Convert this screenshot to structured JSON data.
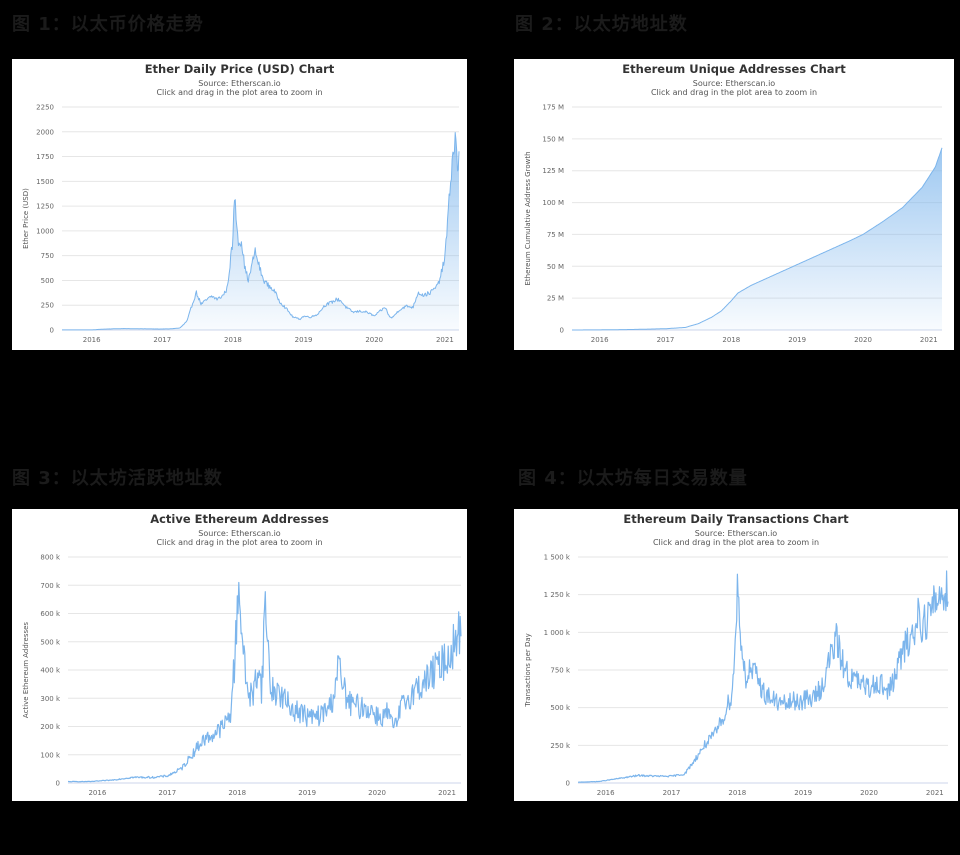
{
  "captions": [
    "图 1：以太币价格走势",
    "图 2：以太坊地址数",
    "图 3：以太坊活跃地址数",
    "图 4：以太坊每日交易数量"
  ],
  "colors": {
    "line": "#7cb5ec",
    "fill_top": "#7cb5ec",
    "grid": "#e6e6e6",
    "background": "#000000"
  },
  "chart_data": [
    {
      "type": "area",
      "title": "Ether Daily Price (USD) Chart",
      "subtitle_source": "Source: Etherscan.io",
      "subtitle_hint": "Click and drag in the plot area to zoom in",
      "xlabel": "",
      "ylabel": "Ether Price (USD)",
      "xlim": [
        2015.58,
        2021.2
      ],
      "ylim": [
        0,
        2250
      ],
      "yticks": [
        0,
        250,
        500,
        750,
        1000,
        1250,
        1500,
        1750,
        2000,
        2250
      ],
      "ytick_labels": [
        "0",
        "250",
        "500",
        "750",
        "1000",
        "1250",
        "1500",
        "1750",
        "2000",
        "2250"
      ],
      "xticks": [
        2016,
        2017,
        2018,
        2019,
        2020,
        2021
      ],
      "xtick_labels": [
        "2016",
        "2017",
        "2018",
        "2019",
        "2020",
        "2021"
      ],
      "x": [
        2015.58,
        2015.8,
        2016.0,
        2016.2,
        2016.45,
        2016.7,
        2016.95,
        2017.1,
        2017.25,
        2017.35,
        2017.42,
        2017.48,
        2017.55,
        2017.62,
        2017.7,
        2017.78,
        2017.86,
        2017.92,
        2017.97,
        2018.0,
        2018.02,
        2018.05,
        2018.08,
        2018.12,
        2018.17,
        2018.22,
        2018.27,
        2018.31,
        2018.35,
        2018.42,
        2018.5,
        2018.58,
        2018.66,
        2018.75,
        2018.85,
        2018.95,
        2019.0,
        2019.1,
        2019.2,
        2019.3,
        2019.4,
        2019.47,
        2019.52,
        2019.6,
        2019.7,
        2019.8,
        2019.9,
        2020.0,
        2020.1,
        2020.16,
        2020.2,
        2020.25,
        2020.35,
        2020.45,
        2020.55,
        2020.62,
        2020.7,
        2020.8,
        2020.9,
        2020.96,
        2021.0,
        2021.03,
        2021.06,
        2021.09,
        2021.12,
        2021.15,
        2021.18,
        2021.2
      ],
      "values": [
        1,
        1,
        1,
        10,
        14,
        12,
        10,
        11,
        20,
        90,
        250,
        380,
        260,
        300,
        340,
        310,
        350,
        420,
        740,
        900,
        1380,
        1100,
        880,
        900,
        620,
        500,
        660,
        800,
        700,
        520,
        450,
        400,
        290,
        220,
        130,
        110,
        140,
        130,
        160,
        250,
        280,
        310,
        300,
        230,
        180,
        190,
        180,
        140,
        200,
        230,
        150,
        120,
        200,
        240,
        230,
        380,
        350,
        380,
        450,
        600,
        740,
        1000,
        1300,
        1600,
        1800,
        1950,
        1600,
        1750
      ]
    },
    {
      "type": "area",
      "title": "Ethereum Unique Addresses Chart",
      "subtitle_source": "Source: Etherscan.io",
      "subtitle_hint": "Click and drag in the plot area to zoom in",
      "xlabel": "",
      "ylabel": "Ethereum Cumulative Address Growth",
      "xlim": [
        2015.58,
        2021.2
      ],
      "ylim": [
        0,
        175
      ],
      "yticks": [
        0,
        25,
        50,
        75,
        100,
        125,
        150,
        175
      ],
      "ytick_labels": [
        "0",
        "25 M",
        "50 M",
        "75 M",
        "100 M",
        "125 M",
        "150 M",
        "175 M"
      ],
      "xticks": [
        2016,
        2017,
        2018,
        2019,
        2020,
        2021
      ],
      "xtick_labels": [
        "2016",
        "2017",
        "2018",
        "2019",
        "2020",
        "2021"
      ],
      "x": [
        2015.58,
        2016.0,
        2016.5,
        2017.0,
        2017.3,
        2017.5,
        2017.7,
        2017.85,
        2018.0,
        2018.1,
        2018.3,
        2018.6,
        2018.9,
        2019.2,
        2019.5,
        2019.8,
        2020.0,
        2020.3,
        2020.6,
        2020.9,
        2021.1,
        2021.2
      ],
      "values": [
        0,
        0.1,
        0.4,
        1,
        2,
        5,
        10,
        15,
        23,
        29,
        35,
        42,
        49,
        56,
        63,
        70,
        75,
        85,
        96,
        112,
        128,
        143
      ]
    },
    {
      "type": "line",
      "title": "Active Ethereum Addresses",
      "subtitle_source": "Source: Etherscan.io",
      "subtitle_hint": "Click and drag in the plot area to zoom in",
      "xlabel": "",
      "ylabel": "Active Ethereum Addresses",
      "xlim": [
        2015.58,
        2021.2
      ],
      "ylim": [
        0,
        800
      ],
      "yticks": [
        0,
        100,
        200,
        300,
        400,
        500,
        600,
        700,
        800
      ],
      "ytick_labels": [
        "0",
        "100 k",
        "200 k",
        "300 k",
        "400 k",
        "500 k",
        "600 k",
        "700 k",
        "800 k"
      ],
      "xticks": [
        2016,
        2017,
        2018,
        2019,
        2020,
        2021
      ],
      "xtick_labels": [
        "2016",
        "2017",
        "2018",
        "2019",
        "2020",
        "2021"
      ],
      "x": [
        2015.58,
        2015.9,
        2016.2,
        2016.5,
        2016.8,
        2017.0,
        2017.2,
        2017.35,
        2017.5,
        2017.65,
        2017.8,
        2017.9,
        2017.97,
        2018.0,
        2018.03,
        2018.06,
        2018.1,
        2018.15,
        2018.22,
        2018.3,
        2018.35,
        2018.4,
        2018.48,
        2018.6,
        2018.75,
        2018.9,
        2019.05,
        2019.2,
        2019.35,
        2019.45,
        2019.5,
        2019.6,
        2019.75,
        2019.9,
        2020.05,
        2020.15,
        2020.25,
        2020.35,
        2020.5,
        2020.65,
        2020.8,
        2020.95,
        2021.05,
        2021.15,
        2021.2
      ],
      "values": [
        5,
        5,
        10,
        20,
        20,
        25,
        50,
        100,
        150,
        170,
        200,
        240,
        450,
        620,
        720,
        560,
        420,
        330,
        300,
        420,
        330,
        640,
        330,
        320,
        270,
        250,
        230,
        240,
        280,
        420,
        350,
        280,
        270,
        260,
        230,
        250,
        190,
        270,
        320,
        350,
        390,
        430,
        460,
        520,
        540
      ]
    },
    {
      "type": "line",
      "title": "Ethereum Daily Transactions Chart",
      "subtitle_source": "Source: Etherscan.io",
      "subtitle_hint": "Click and drag in the plot area to zoom in",
      "xlabel": "",
      "ylabel": "Transactions per Day",
      "xlim": [
        2015.58,
        2021.2
      ],
      "ylim": [
        0,
        1500
      ],
      "yticks": [
        0,
        250,
        500,
        750,
        1000,
        1250,
        1500
      ],
      "ytick_labels": [
        "0",
        "250 k",
        "500 k",
        "750 k",
        "1 000 k",
        "1 250 k",
        "1 500 k"
      ],
      "xticks": [
        2016,
        2017,
        2018,
        2019,
        2020,
        2021
      ],
      "xtick_labels": [
        "2016",
        "2017",
        "2018",
        "2019",
        "2020",
        "2021"
      ],
      "x": [
        2015.58,
        2015.9,
        2016.2,
        2016.5,
        2016.8,
        2017.0,
        2017.2,
        2017.35,
        2017.5,
        2017.65,
        2017.8,
        2017.92,
        2017.97,
        2018.0,
        2018.03,
        2018.07,
        2018.12,
        2018.2,
        2018.3,
        2018.4,
        2018.55,
        2018.7,
        2018.85,
        2019.0,
        2019.15,
        2019.3,
        2019.42,
        2019.5,
        2019.6,
        2019.7,
        2019.8,
        2019.9,
        2020.0,
        2020.1,
        2020.2,
        2020.3,
        2020.4,
        2020.5,
        2020.6,
        2020.7,
        2020.75,
        2020.8,
        2020.9,
        2021.0,
        2021.1,
        2021.2
      ],
      "values": [
        5,
        10,
        30,
        50,
        45,
        45,
        60,
        150,
        250,
        320,
        450,
        600,
        900,
        1350,
        1100,
        900,
        700,
        750,
        700,
        600,
        550,
        520,
        540,
        550,
        560,
        650,
        850,
        950,
        800,
        700,
        680,
        650,
        620,
        680,
        650,
        600,
        720,
        850,
        950,
        1000,
        1150,
        1050,
        1100,
        1200,
        1250,
        1300
      ]
    }
  ]
}
